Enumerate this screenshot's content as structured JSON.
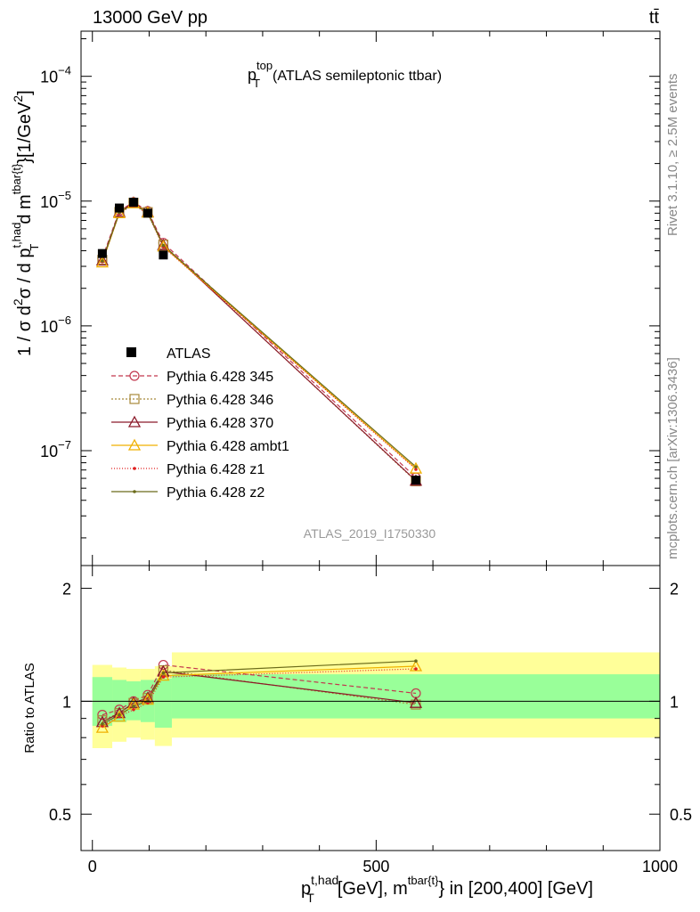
{
  "header": {
    "left": "13000 GeV pp",
    "right": "tt̄"
  },
  "side": {
    "rivet": "Rivet 3.1.10, ≥ 2.5M events",
    "mcplots": "mcplots.cern.ch [arXiv:1306.3436]"
  },
  "chart_data": {
    "type": "scatter",
    "title_main": "p",
    "title_sup": "top",
    "title_sub": "T",
    "title_rest": "(ATLAS semileptonic ttbar)",
    "analysis_label": "ATLAS_2019_I1750330",
    "xlabel": {
      "p": "p",
      "sup": "t,had",
      "sub": "T",
      "mid": "[GeV], m",
      "sup2": "tbar{t}",
      "rest": "} in [200,400] [GeV]"
    },
    "ylabel": {
      "prefix": "1 / σ d",
      "sup1": "2",
      "mid": "σ / d p",
      "sup2": "t,had",
      "sub2": "T",
      "mid2": "d m",
      "sup3": "tbar{t}",
      "rest": "}[1/GeV",
      "sup4": "2",
      "end": "]"
    },
    "ratio_ylabel": "Ratio to ATLAS",
    "xlim": [
      -20,
      1000
    ],
    "ylim_main": [
      1.2e-08,
      0.00023
    ],
    "ylim_ratio": [
      0.4,
      2.3
    ],
    "log_y": true,
    "x_ticks": [
      {
        "value": 0,
        "label": "0"
      },
      {
        "value": 500,
        "label": "500"
      },
      {
        "value": 1000,
        "label": "1000"
      }
    ],
    "y_ticks_main": [
      {
        "value": 1e-07,
        "base": "10",
        "exp": "−7"
      },
      {
        "value": 1e-06,
        "base": "10",
        "exp": "−6"
      },
      {
        "value": 1e-05,
        "base": "10",
        "exp": "−5"
      },
      {
        "value": 0.0001,
        "base": "10",
        "exp": "−4"
      }
    ],
    "y_ticks_ratio": [
      {
        "value": 0.5,
        "label": "0.5"
      },
      {
        "value": 1,
        "label": "1"
      },
      {
        "value": 2,
        "label": "2"
      }
    ],
    "bins": [
      {
        "lo": 0,
        "hi": 35,
        "x": 17.5
      },
      {
        "lo": 35,
        "hi": 60,
        "x": 47.5
      },
      {
        "lo": 60,
        "hi": 85,
        "x": 72.5
      },
      {
        "lo": 85,
        "hi": 110,
        "x": 97.5
      },
      {
        "lo": 110,
        "hi": 140,
        "x": 125
      },
      {
        "lo": 140,
        "hi": 1000,
        "x": 570
      }
    ],
    "data": {
      "name": "ATLAS",
      "values": [
        3.8e-06,
        8.8e-06,
        9.8e-06,
        8e-06,
        3.7e-06,
        5.8e-08
      ],
      "band_inner": [
        [
          0.86,
          1.16
        ],
        [
          0.88,
          1.14
        ],
        [
          0.89,
          1.13
        ],
        [
          0.88,
          1.14
        ],
        [
          0.85,
          1.15
        ],
        [
          0.9,
          1.18
        ]
      ],
      "band_outer": [
        [
          0.75,
          1.25
        ],
        [
          0.78,
          1.23
        ],
        [
          0.8,
          1.22
        ],
        [
          0.79,
          1.22
        ],
        [
          0.76,
          1.24
        ],
        [
          0.8,
          1.35
        ]
      ],
      "inner_color": "#99ff99",
      "outer_color": "#ffff99"
    },
    "series": [
      {
        "name": "Pythia 6.428 345",
        "color": "#c2374e",
        "dash": "5,3",
        "marker": "circle",
        "ratios": [
          0.92,
          0.95,
          1.0,
          1.04,
          1.25,
          1.05
        ]
      },
      {
        "name": "Pythia 6.428 346",
        "color": "#a8893a",
        "dash": "2,2",
        "marker": "square",
        "ratios": [
          0.89,
          0.93,
          0.99,
          1.02,
          1.21,
          0.98
        ]
      },
      {
        "name": "Pythia 6.428 370",
        "color": "#8b1a2a",
        "dash": "",
        "marker": "triangle",
        "ratios": [
          0.88,
          0.93,
          0.99,
          1.02,
          1.2,
          0.99
        ]
      },
      {
        "name": "Pythia 6.428 ambt1",
        "color": "#f0b000",
        "dash": "",
        "marker": "triangle",
        "ratios": [
          0.85,
          0.91,
          0.98,
          1.01,
          1.17,
          1.24
        ]
      },
      {
        "name": "Pythia 6.428 z1",
        "color": "#e02020",
        "dash": "1,2",
        "marker": "dot",
        "ratios": [
          0.86,
          0.91,
          0.95,
          0.99,
          1.16,
          1.22
        ]
      },
      {
        "name": "Pythia 6.428 z2",
        "color": "#6b6b1a",
        "dash": "",
        "marker": "dot",
        "ratios": [
          0.87,
          0.92,
          0.97,
          1.0,
          1.19,
          1.28
        ]
      }
    ]
  }
}
